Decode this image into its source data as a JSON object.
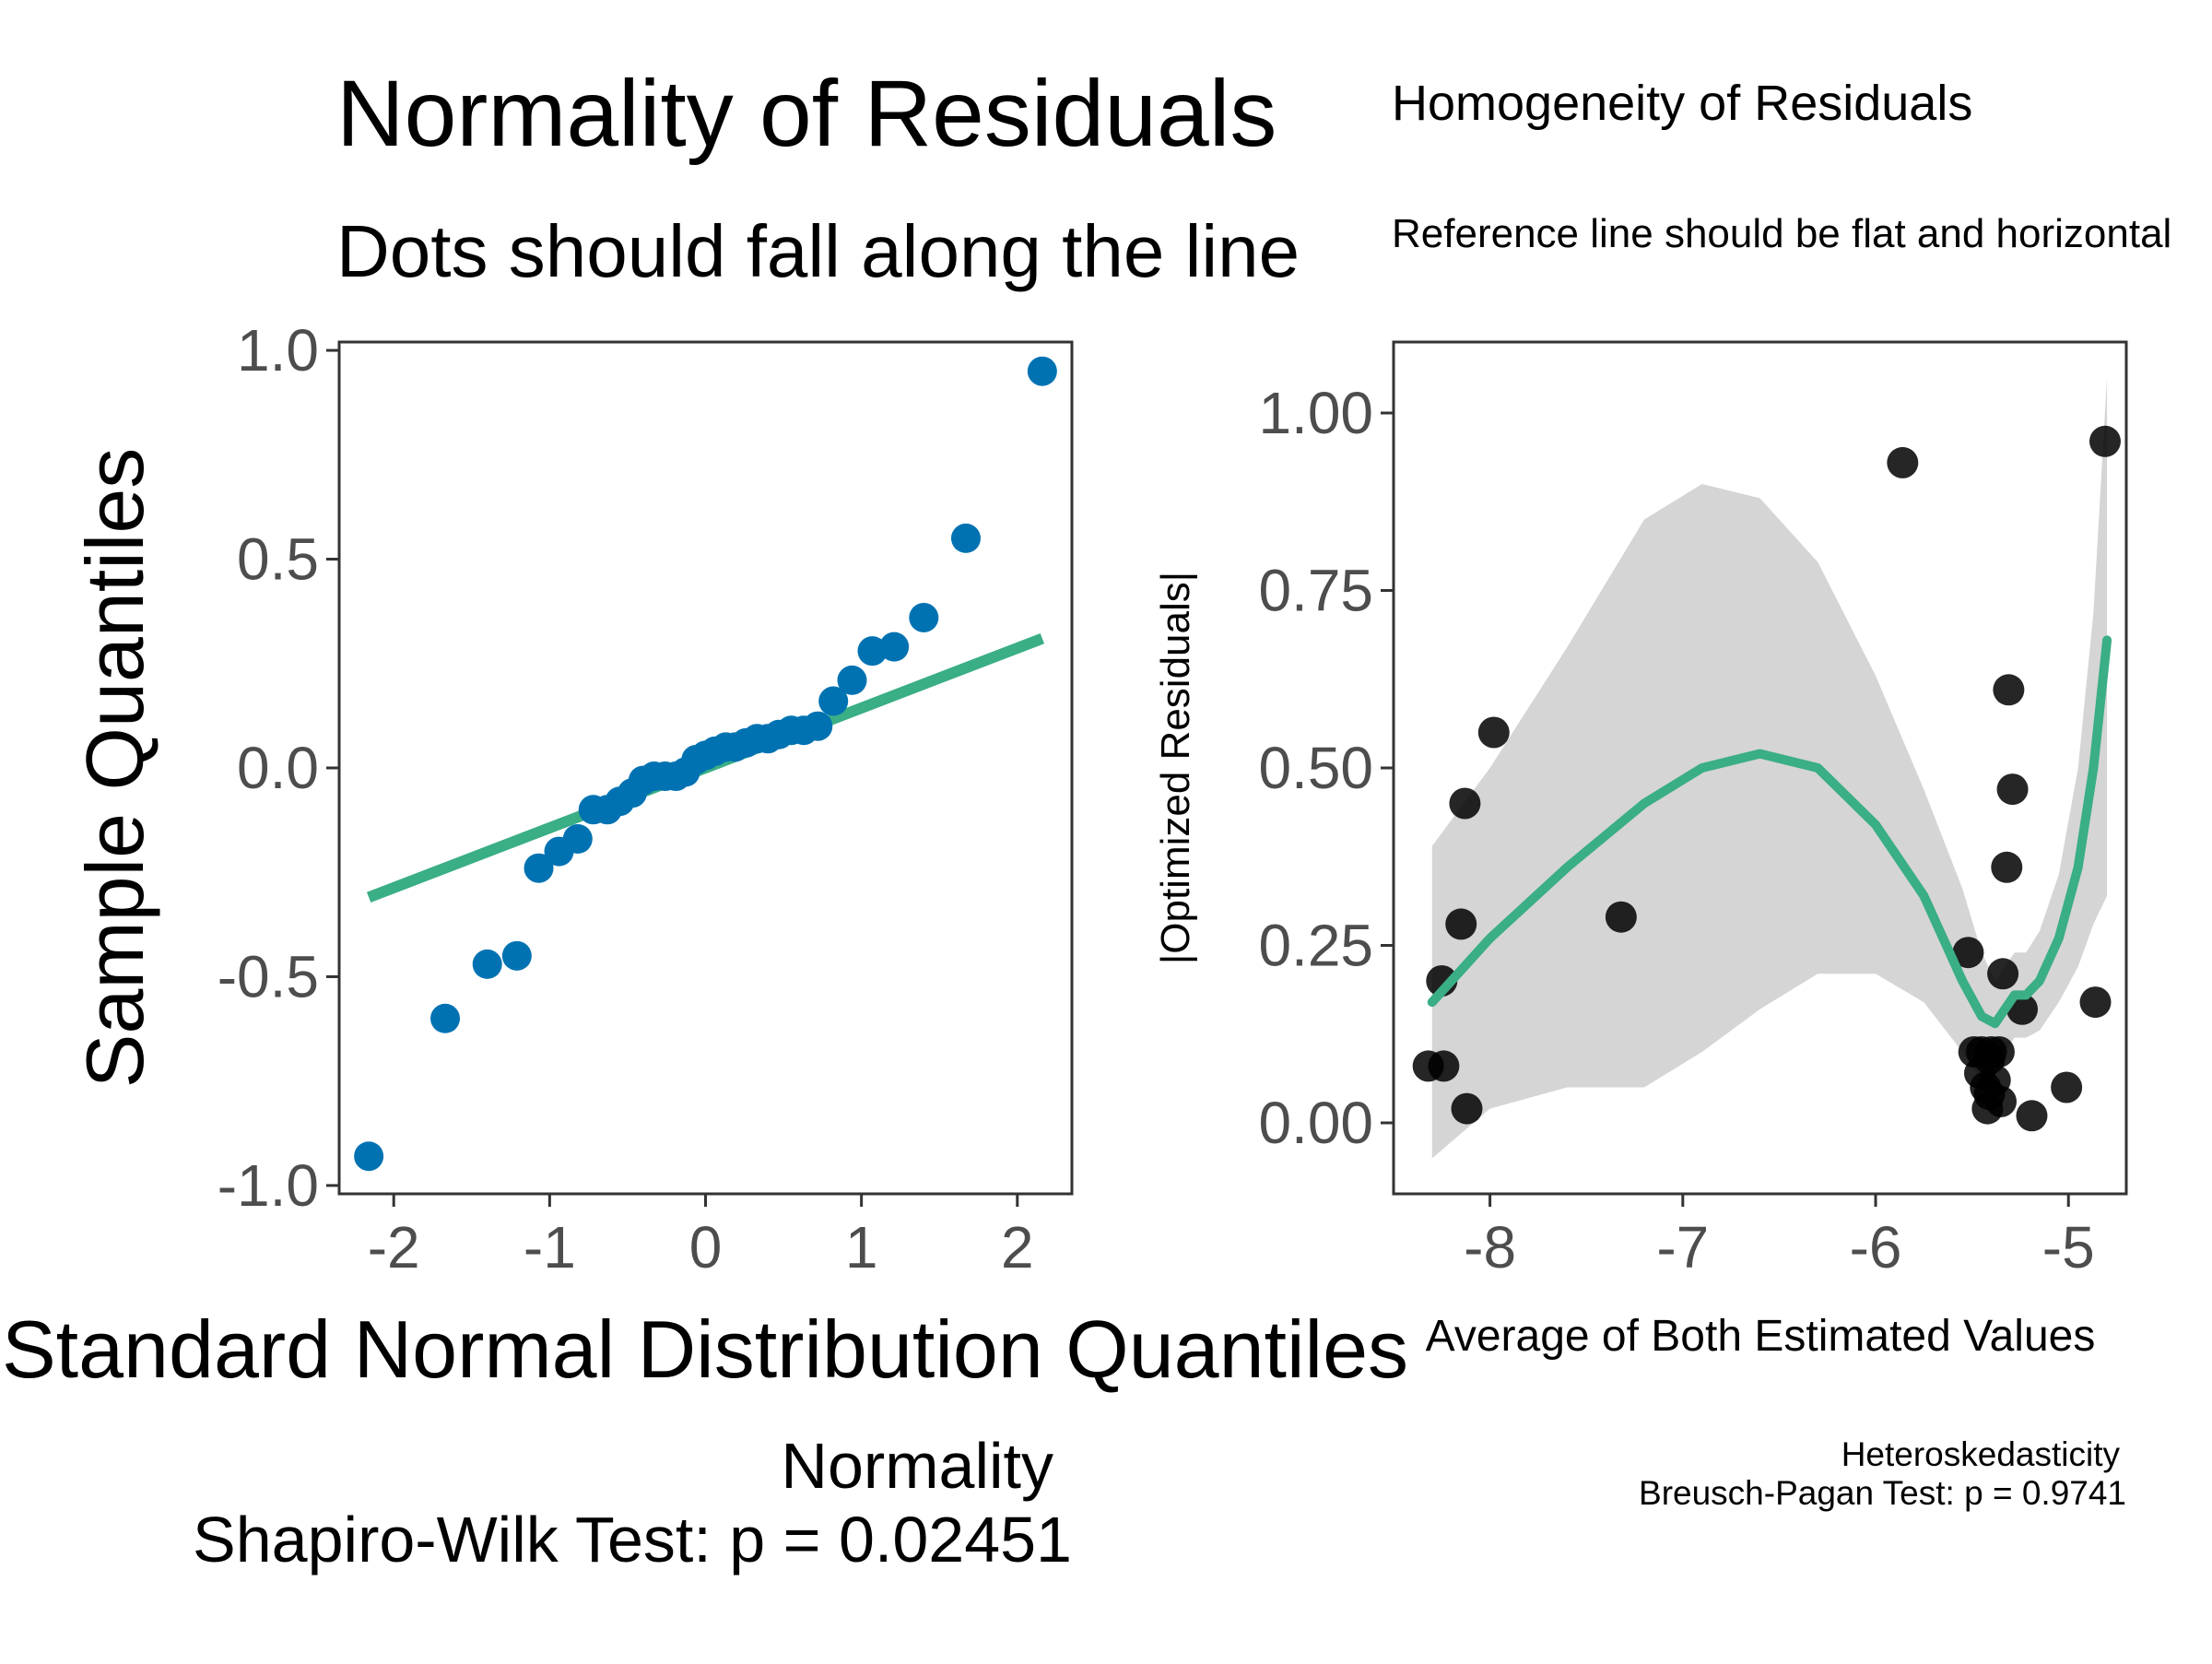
{
  "colors": {
    "qq_points": "#0072B2",
    "reference_line": "#3AAE85",
    "confidence_band": "#D5D5D5",
    "scale_points": "#000000",
    "axis": "#333333",
    "tick_label": "#4D4D4D",
    "text": "#000000"
  },
  "chart_data": [
    {
      "type": "scatter",
      "panel": "left",
      "title": "Normality of Residuals",
      "subtitle": "Dots should fall along the line",
      "xlabel": "Standard Normal Distribution Quantiles",
      "ylabel": "Sample Quantiles",
      "xlim": [
        -2.35,
        2.35
      ],
      "ylim": [
        -1.02,
        1.02
      ],
      "xticks": [
        -2,
        -1,
        0,
        1,
        2
      ],
      "xtick_labels": [
        "-2",
        "-1",
        "0",
        "1",
        "2"
      ],
      "yticks": [
        -1.0,
        -0.5,
        0.0,
        0.5,
        1.0
      ],
      "ytick_labels": [
        "-1.0",
        "-0.5",
        "0.0",
        "0.5",
        "1.0"
      ],
      "grid": false,
      "points": {
        "x": [
          -2.16,
          -1.67,
          -1.4,
          -1.21,
          -1.07,
          -0.94,
          -0.82,
          -0.72,
          -0.63,
          -0.55,
          -0.47,
          -0.4,
          -0.33,
          -0.26,
          -0.19,
          -0.13,
          -0.06,
          0.0,
          0.06,
          0.13,
          0.19,
          0.26,
          0.33,
          0.4,
          0.47,
          0.55,
          0.63,
          0.72,
          0.82,
          0.94,
          1.07,
          1.21,
          1.4,
          1.67,
          2.16
        ],
        "y": [
          -0.93,
          -0.6,
          -0.47,
          -0.45,
          -0.24,
          -0.2,
          -0.17,
          -0.1,
          -0.1,
          -0.08,
          -0.06,
          -0.03,
          -0.02,
          -0.02,
          -0.02,
          -0.01,
          0.02,
          0.03,
          0.04,
          0.05,
          0.05,
          0.06,
          0.07,
          0.07,
          0.08,
          0.09,
          0.09,
          0.1,
          0.16,
          0.21,
          0.28,
          0.29,
          0.36,
          0.55,
          0.95
        ]
      },
      "reference_line": {
        "x": [
          -2.16,
          2.16
        ],
        "y": [
          -0.31,
          0.31
        ]
      },
      "caption_line1": "Normality",
      "caption_line2": "Shapiro-Wilk Test: p = 0.02451"
    },
    {
      "type": "scatter",
      "panel": "right",
      "title": "Homogeneity of Residuals",
      "subtitle": "Reference line should be flat and horizontal",
      "xlabel": "Average of Both Estimated Values",
      "ylabel": "|Optimized Residuals|",
      "xlim": [
        -8.5,
        -4.7
      ],
      "ylim": [
        -0.1,
        1.1
      ],
      "xticks": [
        -8,
        -7,
        -6,
        -5
      ],
      "xtick_labels": [
        "-8",
        "-7",
        "-6",
        "-5"
      ],
      "yticks": [
        0.0,
        0.25,
        0.5,
        0.75,
        1.0
      ],
      "ytick_labels": [
        "0.00",
        "0.25",
        "0.50",
        "0.75",
        "1.00"
      ],
      "grid": false,
      "points": {
        "x": [
          -8.32,
          -8.25,
          -8.24,
          -8.15,
          -8.13,
          -8.12,
          -7.98,
          -7.32,
          -5.86,
          -5.52,
          -5.49,
          -5.46,
          -5.45,
          -5.43,
          -5.42,
          -5.41,
          -5.41,
          -5.4,
          -5.38,
          -5.36,
          -5.35,
          -5.34,
          -5.32,
          -5.31,
          -5.29,
          -5.24,
          -5.19,
          -5.01,
          -4.86,
          -4.81
        ],
        "y": [
          0.08,
          0.2,
          0.08,
          0.28,
          0.45,
          0.02,
          0.55,
          0.29,
          0.93,
          0.24,
          0.1,
          0.07,
          0.1,
          0.05,
          0.02,
          0.09,
          0.04,
          0.1,
          0.06,
          0.1,
          0.03,
          0.21,
          0.36,
          0.61,
          0.47,
          0.16,
          0.01,
          0.05,
          0.17,
          0.96
        ]
      },
      "smooth": {
        "x": [
          -8.3,
          -8.0,
          -7.6,
          -7.2,
          -6.9,
          -6.6,
          -6.3,
          -6.0,
          -5.75,
          -5.55,
          -5.45,
          -5.38,
          -5.33,
          -5.28,
          -5.22,
          -5.15,
          -5.05,
          -4.95,
          -4.87,
          -4.8
        ],
        "y": [
          0.17,
          0.26,
          0.36,
          0.45,
          0.5,
          0.52,
          0.5,
          0.42,
          0.32,
          0.2,
          0.15,
          0.14,
          0.16,
          0.18,
          0.18,
          0.2,
          0.26,
          0.36,
          0.5,
          0.68
        ]
      },
      "band_upper": [
        0.39,
        0.5,
        0.67,
        0.85,
        0.9,
        0.88,
        0.79,
        0.63,
        0.47,
        0.33,
        0.24,
        0.2,
        0.22,
        0.24,
        0.24,
        0.27,
        0.35,
        0.5,
        0.72,
        1.05
      ],
      "band_lower": [
        -0.05,
        0.02,
        0.05,
        0.05,
        0.1,
        0.16,
        0.21,
        0.21,
        0.17,
        0.1,
        0.06,
        0.08,
        0.1,
        0.12,
        0.12,
        0.13,
        0.17,
        0.22,
        0.28,
        0.32
      ],
      "caption_line1": "Heteroskedasticity",
      "caption_line2": "Breusch-Pagan Test: p = 0.9741"
    }
  ]
}
